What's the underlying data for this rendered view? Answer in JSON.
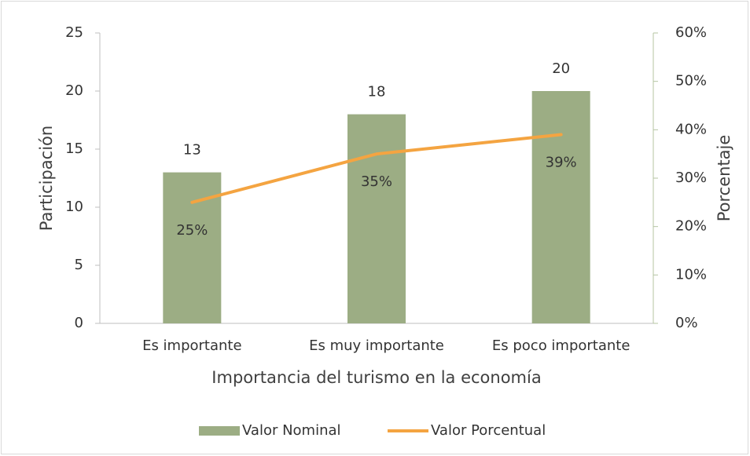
{
  "chart_data": {
    "type": "combo",
    "x_label": "Importancia del turismo en la economía",
    "y_label": "Participación",
    "y2_label": "Porcentaje",
    "categories": [
      "Es importante",
      "Es muy importante",
      "Es poco importante"
    ],
    "series": [
      {
        "name": "Valor Nominal",
        "type": "bar",
        "color": "#9cad84",
        "values": [
          13,
          18,
          20
        ]
      },
      {
        "name": "Valor Porcentual",
        "type": "line",
        "axis": "y2",
        "color": "#f4a441",
        "values": [
          25,
          35,
          39
        ],
        "value_labels": [
          "25%",
          "35%",
          "39%"
        ]
      }
    ],
    "ylim": [
      0,
      25
    ],
    "yticks": [
      0,
      5,
      10,
      15,
      20,
      25
    ],
    "y2lim": [
      0,
      60
    ],
    "y2ticks": [
      {
        "value": 0,
        "label": "0%"
      },
      {
        "value": 10,
        "label": "10%"
      },
      {
        "value": 20,
        "label": "20%"
      },
      {
        "value": 30,
        "label": "30%"
      },
      {
        "value": 40,
        "label": "40%"
      },
      {
        "value": 50,
        "label": "50%"
      },
      {
        "value": 60,
        "label": "60%"
      }
    ],
    "grid": false,
    "legend": "bottom"
  }
}
